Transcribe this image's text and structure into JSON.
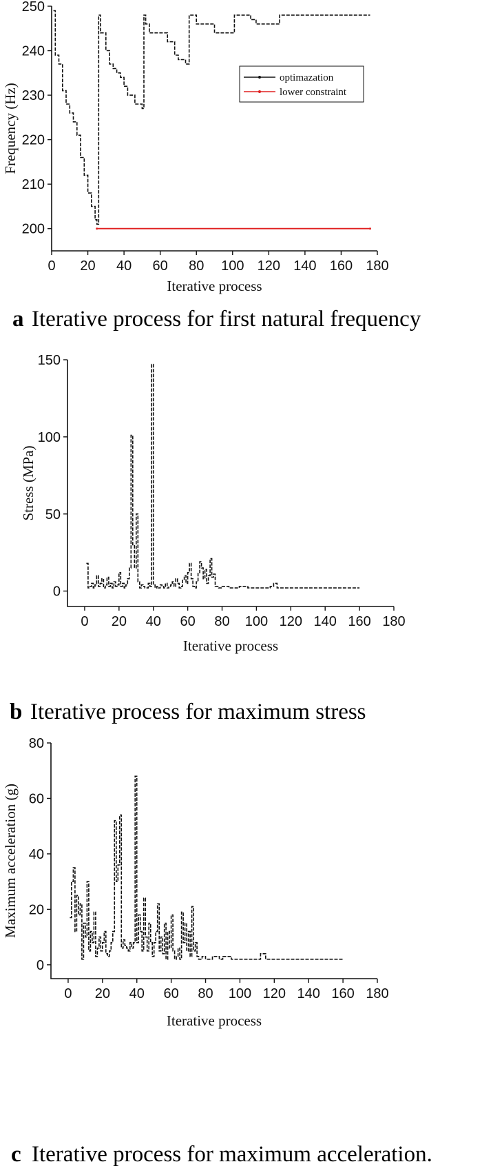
{
  "chart_data": [
    {
      "id": "a",
      "type": "line",
      "caption_letter": "a",
      "caption": "Iterative process for first natural frequency",
      "xlabel": "Iterative process",
      "ylabel": "Frequency (Hz)",
      "xlim": [
        0,
        180
      ],
      "ylim": [
        195,
        250
      ],
      "xticks": [
        0,
        20,
        40,
        60,
        80,
        100,
        120,
        140,
        160,
        180
      ],
      "yticks": [
        200,
        210,
        220,
        230,
        240,
        250
      ],
      "legend_position": "top-right",
      "grid": false,
      "series": [
        {
          "name": "optimazation",
          "color": "#111111",
          "dashed": true,
          "x": [
            1,
            2,
            4,
            6,
            8,
            10,
            12,
            14,
            16,
            18,
            20,
            22,
            24,
            25,
            26,
            27,
            28,
            30,
            32,
            34,
            36,
            38,
            40,
            42,
            44,
            46,
            48,
            50,
            51,
            52,
            54,
            56,
            58,
            60,
            62,
            64,
            66,
            68,
            70,
            72,
            74,
            75,
            76,
            77,
            80,
            84,
            88,
            90,
            95,
            100,
            101,
            105,
            110,
            113,
            115,
            120,
            125,
            126,
            130,
            140,
            150,
            160,
            170,
            176
          ],
          "y": [
            249,
            239,
            237,
            231,
            228,
            226,
            224,
            221,
            216,
            212,
            208,
            205,
            202,
            201,
            248,
            244,
            244,
            240,
            237,
            236,
            235,
            234,
            232,
            230,
            230,
            228,
            228,
            227,
            248,
            246,
            244,
            244,
            244,
            244,
            244,
            242,
            242,
            239,
            238,
            238,
            237,
            237,
            248,
            248,
            246,
            246,
            246,
            244,
            244,
            244,
            248,
            248,
            247,
            246,
            246,
            246,
            246,
            248,
            248,
            248,
            248,
            248,
            248,
            248
          ]
        },
        {
          "name": "lower constraint",
          "color": "#e02020",
          "dashed": false,
          "x": [
            25,
            176
          ],
          "y": [
            200,
            200
          ]
        }
      ]
    },
    {
      "id": "b",
      "type": "line",
      "caption_letter": "b",
      "caption": "Iterative process for maximum stress",
      "xlabel": "Iterative process",
      "ylabel": "Stress (MPa)",
      "xlim": [
        -10,
        180
      ],
      "ylim": [
        -10,
        150
      ],
      "xticks": [
        0,
        20,
        40,
        60,
        80,
        100,
        120,
        140,
        160,
        180
      ],
      "yticks": [
        0,
        50,
        100,
        150
      ],
      "grid": false,
      "series": [
        {
          "color": "#111111",
          "dashed": true,
          "x": [
            1,
            2,
            3,
            4,
            5,
            6,
            7,
            8,
            9,
            10,
            11,
            12,
            13,
            14,
            15,
            16,
            17,
            18,
            19,
            20,
            21,
            22,
            23,
            24,
            25,
            26,
            27,
            28,
            29,
            30,
            31,
            32,
            33,
            34,
            35,
            36,
            37,
            38,
            39,
            40,
            41,
            42,
            43,
            44,
            45,
            46,
            47,
            48,
            49,
            50,
            51,
            52,
            53,
            54,
            55,
            56,
            57,
            58,
            59,
            60,
            61,
            62,
            63,
            64,
            65,
            66,
            67,
            68,
            69,
            70,
            71,
            72,
            73,
            74,
            75,
            76,
            78,
            80,
            84,
            88,
            90,
            95,
            100,
            105,
            108,
            110,
            112,
            115,
            120,
            130,
            140,
            150,
            160
          ],
          "y": [
            18,
            2,
            3,
            5,
            2,
            4,
            10,
            3,
            5,
            8,
            2,
            4,
            9,
            3,
            5,
            2,
            6,
            3,
            4,
            12,
            3,
            5,
            2,
            4,
            8,
            15,
            101,
            30,
            15,
            50,
            6,
            2,
            4,
            3,
            2,
            2,
            5,
            3,
            147,
            4,
            2,
            3,
            2,
            4,
            3,
            2,
            5,
            2,
            3,
            4,
            6,
            3,
            8,
            5,
            2,
            3,
            7,
            10,
            5,
            12,
            18,
            8,
            3,
            2,
            6,
            12,
            19,
            15,
            8,
            14,
            5,
            10,
            21,
            9,
            11,
            3,
            2,
            3,
            2,
            2,
            3,
            2,
            2,
            2,
            3,
            5,
            2,
            2,
            2,
            2,
            2,
            2,
            2
          ]
        }
      ]
    },
    {
      "id": "c",
      "type": "line",
      "caption_letter": "c",
      "caption": "Iterative process for maximum acceleration.",
      "xlabel": "Iterative process",
      "ylabel": "Maximum acceleration (g)",
      "xlim": [
        -10,
        180
      ],
      "ylim": [
        -5,
        80
      ],
      "xticks": [
        0,
        20,
        40,
        60,
        80,
        100,
        120,
        140,
        160,
        180
      ],
      "yticks": [
        0,
        20,
        40,
        60,
        80
      ],
      "grid": false,
      "series": [
        {
          "color": "#111111",
          "dashed": true,
          "x": [
            1,
            2,
            3,
            4,
            5,
            6,
            7,
            8,
            9,
            10,
            11,
            12,
            13,
            14,
            15,
            16,
            17,
            18,
            19,
            20,
            21,
            22,
            23,
            24,
            25,
            26,
            27,
            28,
            29,
            30,
            31,
            32,
            33,
            34,
            35,
            36,
            37,
            38,
            39,
            40,
            41,
            42,
            43,
            44,
            45,
            46,
            47,
            48,
            49,
            50,
            51,
            52,
            53,
            54,
            55,
            56,
            57,
            58,
            59,
            60,
            61,
            62,
            63,
            64,
            65,
            66,
            67,
            68,
            69,
            70,
            71,
            72,
            73,
            74,
            75,
            76,
            78,
            80,
            84,
            88,
            90,
            95,
            100,
            105,
            110,
            112,
            115,
            120,
            130,
            140,
            150,
            160
          ],
          "y": [
            17,
            30,
            35,
            12,
            25,
            18,
            22,
            2,
            15,
            10,
            30,
            5,
            12,
            8,
            19,
            3,
            6,
            10,
            5,
            8,
            12,
            4,
            3,
            5,
            8,
            12,
            52,
            30,
            36,
            54,
            6,
            9,
            7,
            6,
            5,
            8,
            6,
            8,
            68,
            8,
            18,
            12,
            5,
            24,
            10,
            5,
            15,
            8,
            3,
            8,
            12,
            22,
            5,
            10,
            4,
            15,
            2,
            12,
            6,
            18,
            5,
            2,
            3,
            6,
            2,
            19,
            8,
            15,
            5,
            12,
            3,
            21,
            5,
            8,
            3,
            2,
            3,
            2,
            3,
            2,
            3,
            2,
            2,
            2,
            2,
            4,
            2,
            2,
            2,
            2,
            2,
            2
          ]
        }
      ]
    }
  ]
}
